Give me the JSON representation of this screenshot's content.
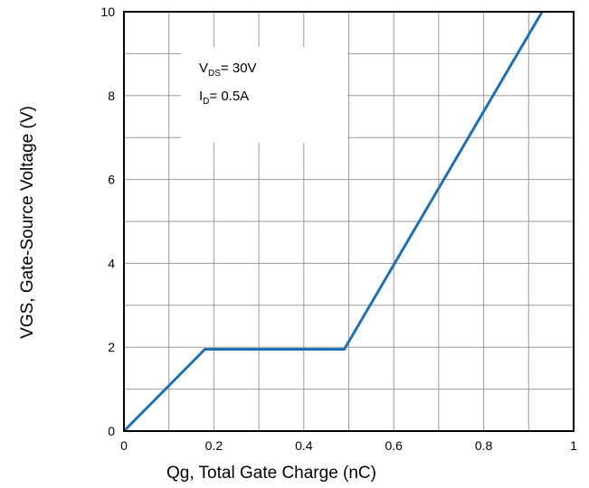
{
  "chart_data": {
    "type": "line",
    "xlabel": "Qg, Total Gate Charge (nC)",
    "ylabel": "VGS, Gate-Source Voltage (V)",
    "xlim": [
      0,
      1
    ],
    "ylim": [
      0,
      10
    ],
    "x_ticks": [
      "0",
      "0.2",
      "0.4",
      "0.6",
      "0.8",
      "1"
    ],
    "y_ticks": [
      "0",
      "2",
      "4",
      "6",
      "8",
      "10"
    ],
    "x_tick_values": [
      0,
      0.2,
      0.4,
      0.6,
      0.8,
      1
    ],
    "y_tick_values": [
      0,
      2,
      4,
      6,
      8,
      10
    ],
    "x_minor_step": 0.1,
    "y_minor_step": 1,
    "grid": true,
    "series": [
      {
        "color": "#1f6fb5",
        "points": [
          {
            "x": 0,
            "y": 0
          },
          {
            "x": 0.18,
            "y": 1.95
          },
          {
            "x": 0.49,
            "y": 1.95
          },
          {
            "x": 0.93,
            "y": 10
          }
        ]
      }
    ],
    "annotations": [
      {
        "main": "V",
        "sub": "DS",
        "rest": "= 30V"
      },
      {
        "main": "I",
        "sub": "D",
        "rest": "= 0.5A"
      }
    ]
  }
}
